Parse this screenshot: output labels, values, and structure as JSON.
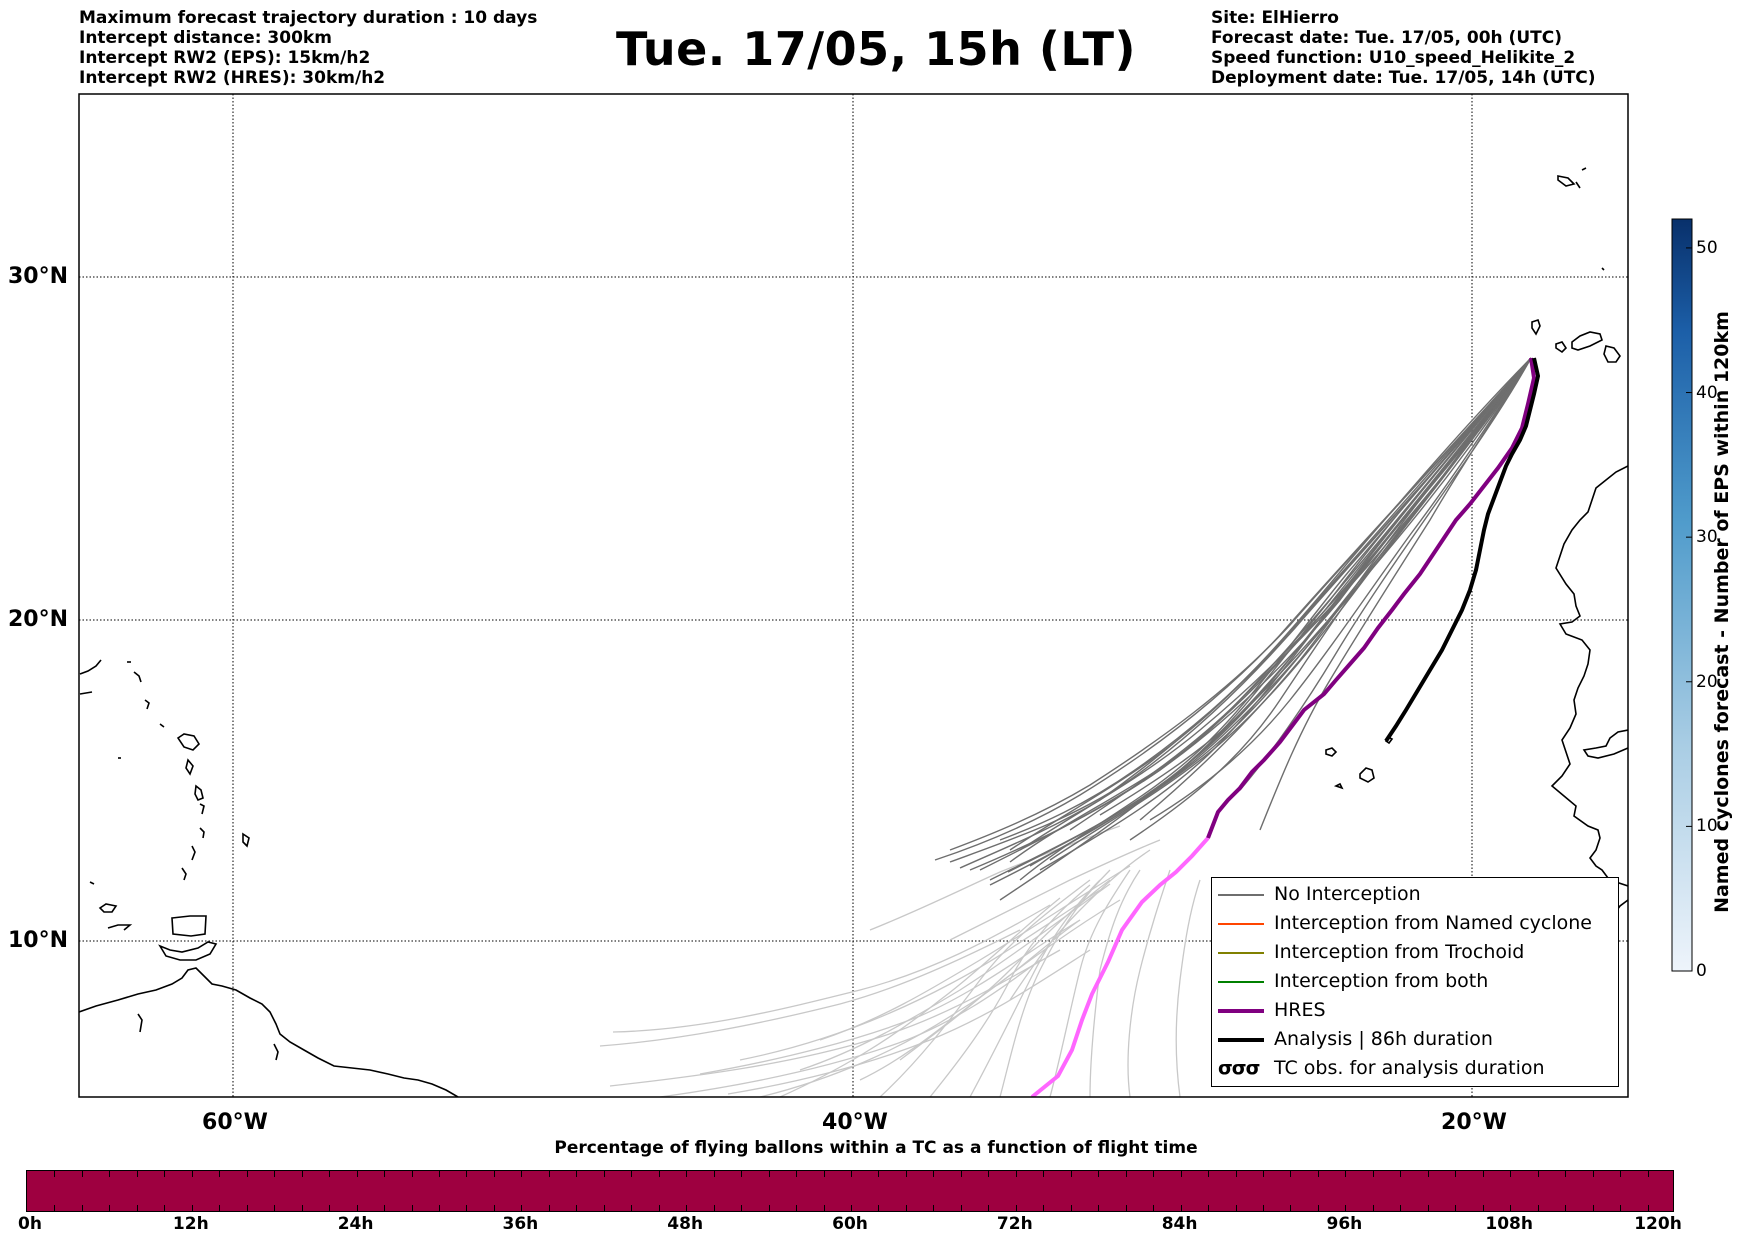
{
  "header_left": [
    "Maximum forecast trajectory duration : 10 days",
    "Intercept distance: 300km",
    "Intercept RW2 (EPS):  15km/h2",
    "Intercept RW2 (HRES): 30km/h2"
  ],
  "title": "Tue. 17/05, 15h (LT)",
  "header_right": [
    "Site: ElHierro",
    "Forecast date: Tue. 17/05, 00h (UTC)",
    "Speed function: U10_speed_Helikite_2",
    "Deployment date: Tue. 17/05, 14h (UTC)"
  ],
  "map": {
    "lat_labels": [
      "30°N",
      "20°N",
      "10°N"
    ],
    "lon_labels": [
      "60°W",
      "40°W",
      "20°W"
    ],
    "colors": {
      "no_interception": "#6e6e6e",
      "light_trajectory": "#c8c8c8",
      "named_cyclone": "#ff4500",
      "trochoid": "#808000",
      "both": "#008000",
      "hres": "#800080",
      "hres_late": "#ff66ff",
      "analysis": "#000000"
    }
  },
  "legend": [
    {
      "label": "No Interception",
      "icon": "thin-gray-line"
    },
    {
      "label": "Interception from Named cyclone",
      "icon": "thin-orange-line"
    },
    {
      "label": "Interception from Trochoid",
      "icon": "thin-olive-line"
    },
    {
      "label": "Interception from both",
      "icon": "thin-green-line"
    },
    {
      "label": "HRES",
      "icon": "thick-purple-line"
    },
    {
      "label": "Analysis | 86h duration",
      "icon": "thick-black-line"
    },
    {
      "label": "TC obs. for analysis duration",
      "icon": "cyclone-symbols",
      "symbol": "σσσ"
    }
  ],
  "colorbar_right": {
    "label": "Named cyclones forecast - Number of EPS within 120km",
    "ticks": [
      "0",
      "10",
      "20",
      "30",
      "40",
      "50"
    ],
    "min": 0,
    "max": 52,
    "color_low": "#e8f0fa",
    "color_high": "#08306b"
  },
  "colorbar_bottom": {
    "title": "Percentage of flying ballons within a TC as a function of flight time",
    "ticks": [
      "0h",
      "12h",
      "24h",
      "36h",
      "48h",
      "60h",
      "72h",
      "84h",
      "96h",
      "108h",
      "120h"
    ],
    "color": "#9e0040"
  }
}
